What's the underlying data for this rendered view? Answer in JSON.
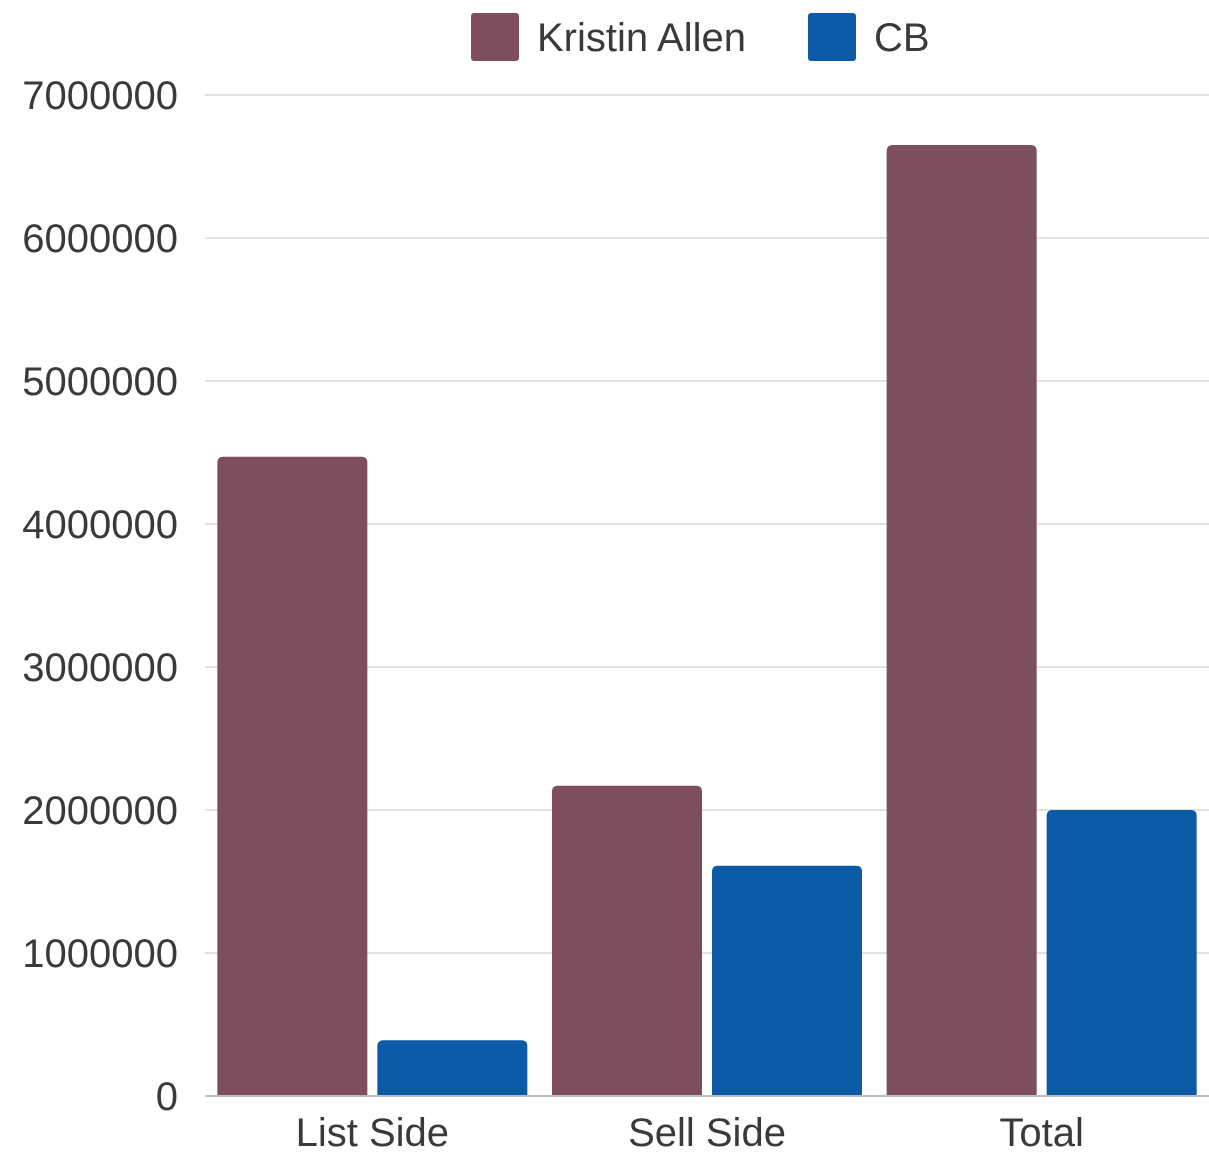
{
  "chart_data": {
    "type": "bar",
    "title": "",
    "xlabel": "",
    "ylabel": "",
    "categories": [
      "List Side",
      "Sell Side",
      "Total"
    ],
    "series": [
      {
        "name": "Kristin Allen",
        "color": "#7d4e5d",
        "values": [
          4470000,
          2170000,
          6650000
        ]
      },
      {
        "name": "CB",
        "color": "#0c59a6",
        "values": [
          390000,
          1610000,
          2000000
        ]
      }
    ],
    "ylim": [
      0,
      7000000
    ],
    "yticks": [
      "0",
      "1000000",
      "2000000",
      "3000000",
      "4000000",
      "5000000",
      "6000000",
      "7000000"
    ],
    "grid": true,
    "legend_position": "top-center"
  }
}
